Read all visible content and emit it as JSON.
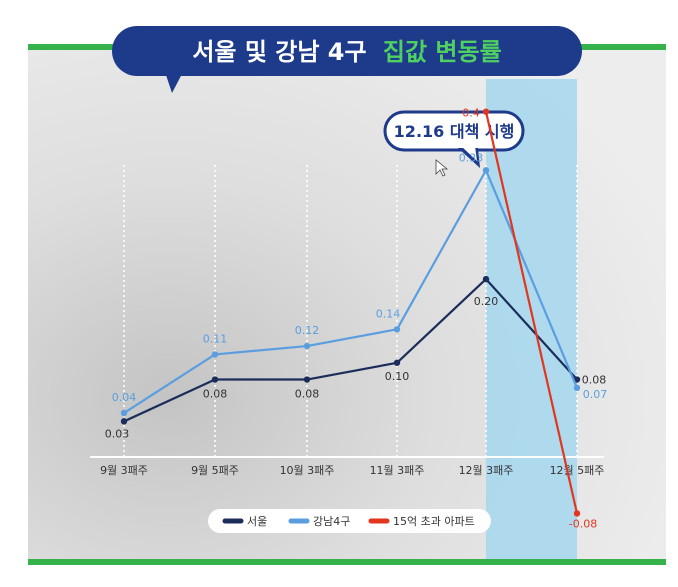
{
  "title": {
    "part1": "서울 및 강남 4구",
    "part2": "집값 변동률"
  },
  "annotation": "12.16 대책 시행",
  "colors": {
    "banner": "#1e3a8a",
    "accent_green": "#35b34a",
    "seoul": "#1b2d5a",
    "gangnam": "#5b9ee0",
    "apt15": "#e2361f",
    "highlight": "#a8d8ee"
  },
  "chart_data": {
    "type": "line",
    "categories": [
      "9월 3패주",
      "9월 5패주",
      "10월 3패주",
      "11월 3패주",
      "12월 3패주",
      "12월 5패주"
    ],
    "series": [
      {
        "name": "서울",
        "values": [
          0.03,
          0.08,
          0.08,
          0.1,
          0.2,
          0.08
        ],
        "labels": [
          "0.03",
          "0.08",
          "0.08",
          "0.10",
          "0.20",
          "0.08"
        ],
        "color": "#1b2d5a"
      },
      {
        "name": "강남4구",
        "values": [
          0.04,
          0.11,
          0.12,
          0.14,
          0.33,
          0.07
        ],
        "labels": [
          "0.04",
          "0.11",
          "0.12",
          "0.14",
          "0.33",
          "0.07"
        ],
        "color": "#5b9ee0"
      },
      {
        "name": "15억 초과 아파트",
        "points": [
          {
            "x": "12월 3패주",
            "y": 0.4
          },
          {
            "x": "12월 5패주",
            "y": -0.08
          }
        ],
        "labels": [
          "0.4",
          "-0.08"
        ],
        "color": "#e2361f"
      }
    ],
    "highlight_range": [
      "12월 3패주",
      "12월 5패주"
    ],
    "grid": "vertical dotted",
    "legend_position": "bottom-center"
  }
}
